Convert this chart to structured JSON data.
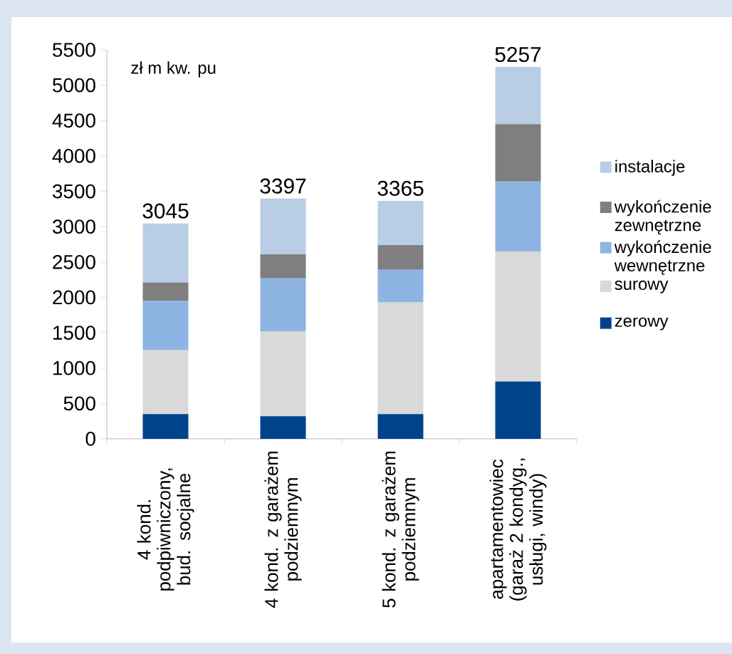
{
  "chart_data": {
    "type": "bar",
    "stacked": true,
    "categories": [
      "4 kond. podpiwniczony, bud. socjalne",
      "4 kond. z garażem podziemnym",
      "5 kond. z garażem podziemnym",
      "apartamentowiec (garaż 2 kondyg., usługi, windy)"
    ],
    "series": [
      {
        "name": "zerowy",
        "color": "#00438a",
        "values": [
          350,
          320,
          350,
          810
        ]
      },
      {
        "name": "surowy",
        "color": "#d9d9d9",
        "values": [
          910,
          1200,
          1580,
          1840
        ]
      },
      {
        "name": "wykończenie wewnętrzne",
        "color": "#8eb4e3",
        "values": [
          690,
          750,
          460,
          990
        ]
      },
      {
        "name": "wykończenie zewnętrzne",
        "color": "#7f7f7f",
        "values": [
          260,
          340,
          350,
          810
        ]
      },
      {
        "name": "instalacje",
        "color": "#b9cde5",
        "values": [
          835,
          787,
          625,
          807
        ]
      }
    ],
    "totals": [
      "3045",
      "3397",
      "3365",
      "5257"
    ],
    "ylim": [
      0,
      5500
    ],
    "yticks": [
      0,
      500,
      1000,
      1500,
      2000,
      2500,
      3000,
      3500,
      4000,
      4500,
      5000,
      5500
    ],
    "annotations": [
      "zł m kw. pu"
    ],
    "legend": "right",
    "grid": false
  }
}
